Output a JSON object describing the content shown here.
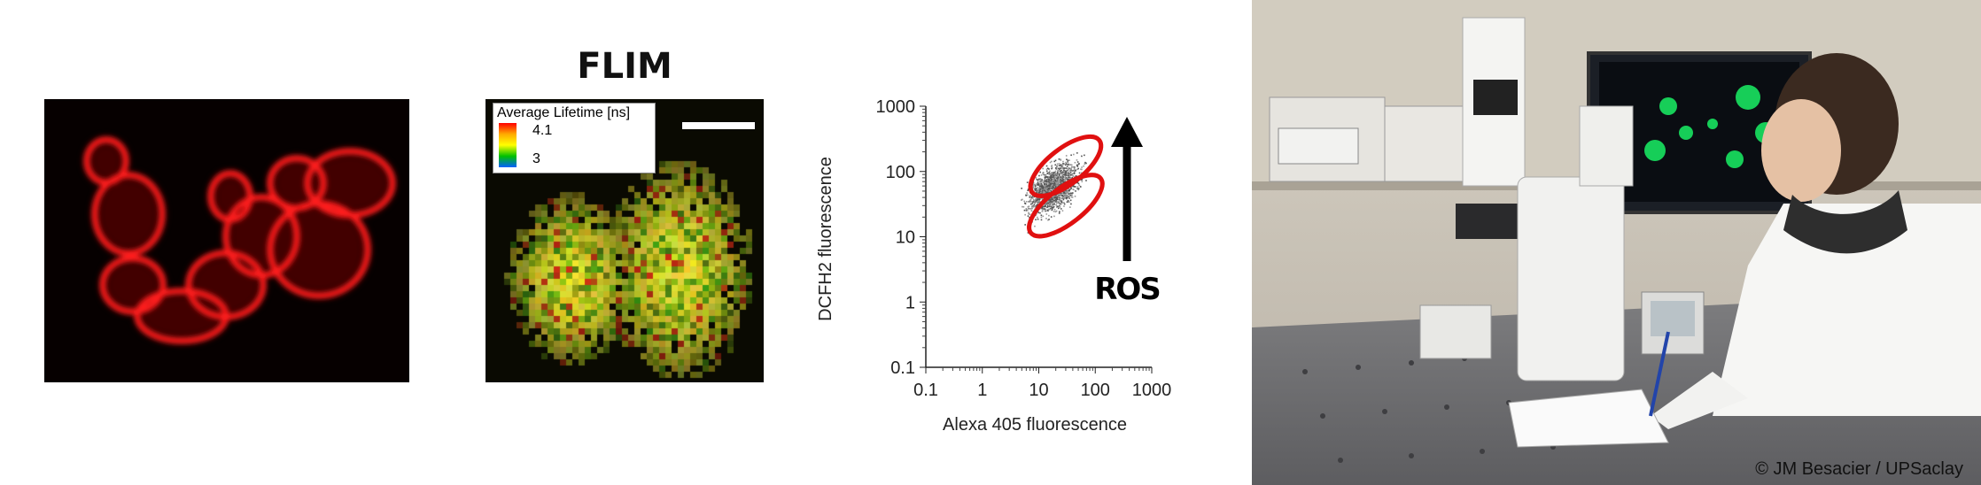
{
  "flim": {
    "title": "FLIM",
    "legend_title": "Average Lifetime [ns]",
    "legend_max": "4.1",
    "legend_min": "3"
  },
  "chart_data": {
    "type": "scatter",
    "xlabel": "Alexa 405 fluorescence",
    "ylabel": "DCFH2 fluorescence",
    "xscale": "log",
    "yscale": "log",
    "xlim": [
      0.1,
      1000
    ],
    "ylim": [
      0.1,
      1000
    ],
    "x_ticks": [
      "0.1",
      "1",
      "10",
      "100",
      "1000"
    ],
    "y_ticks": [
      "0.1",
      "1",
      "10",
      "100",
      "1000"
    ],
    "annotation": "ROS",
    "gates": [
      {
        "name": "upper",
        "color": "#e01010"
      },
      {
        "name": "lower",
        "color": "#e01010"
      }
    ]
  },
  "photo": {
    "credit": "© JM Besacier / UPSaclay"
  }
}
